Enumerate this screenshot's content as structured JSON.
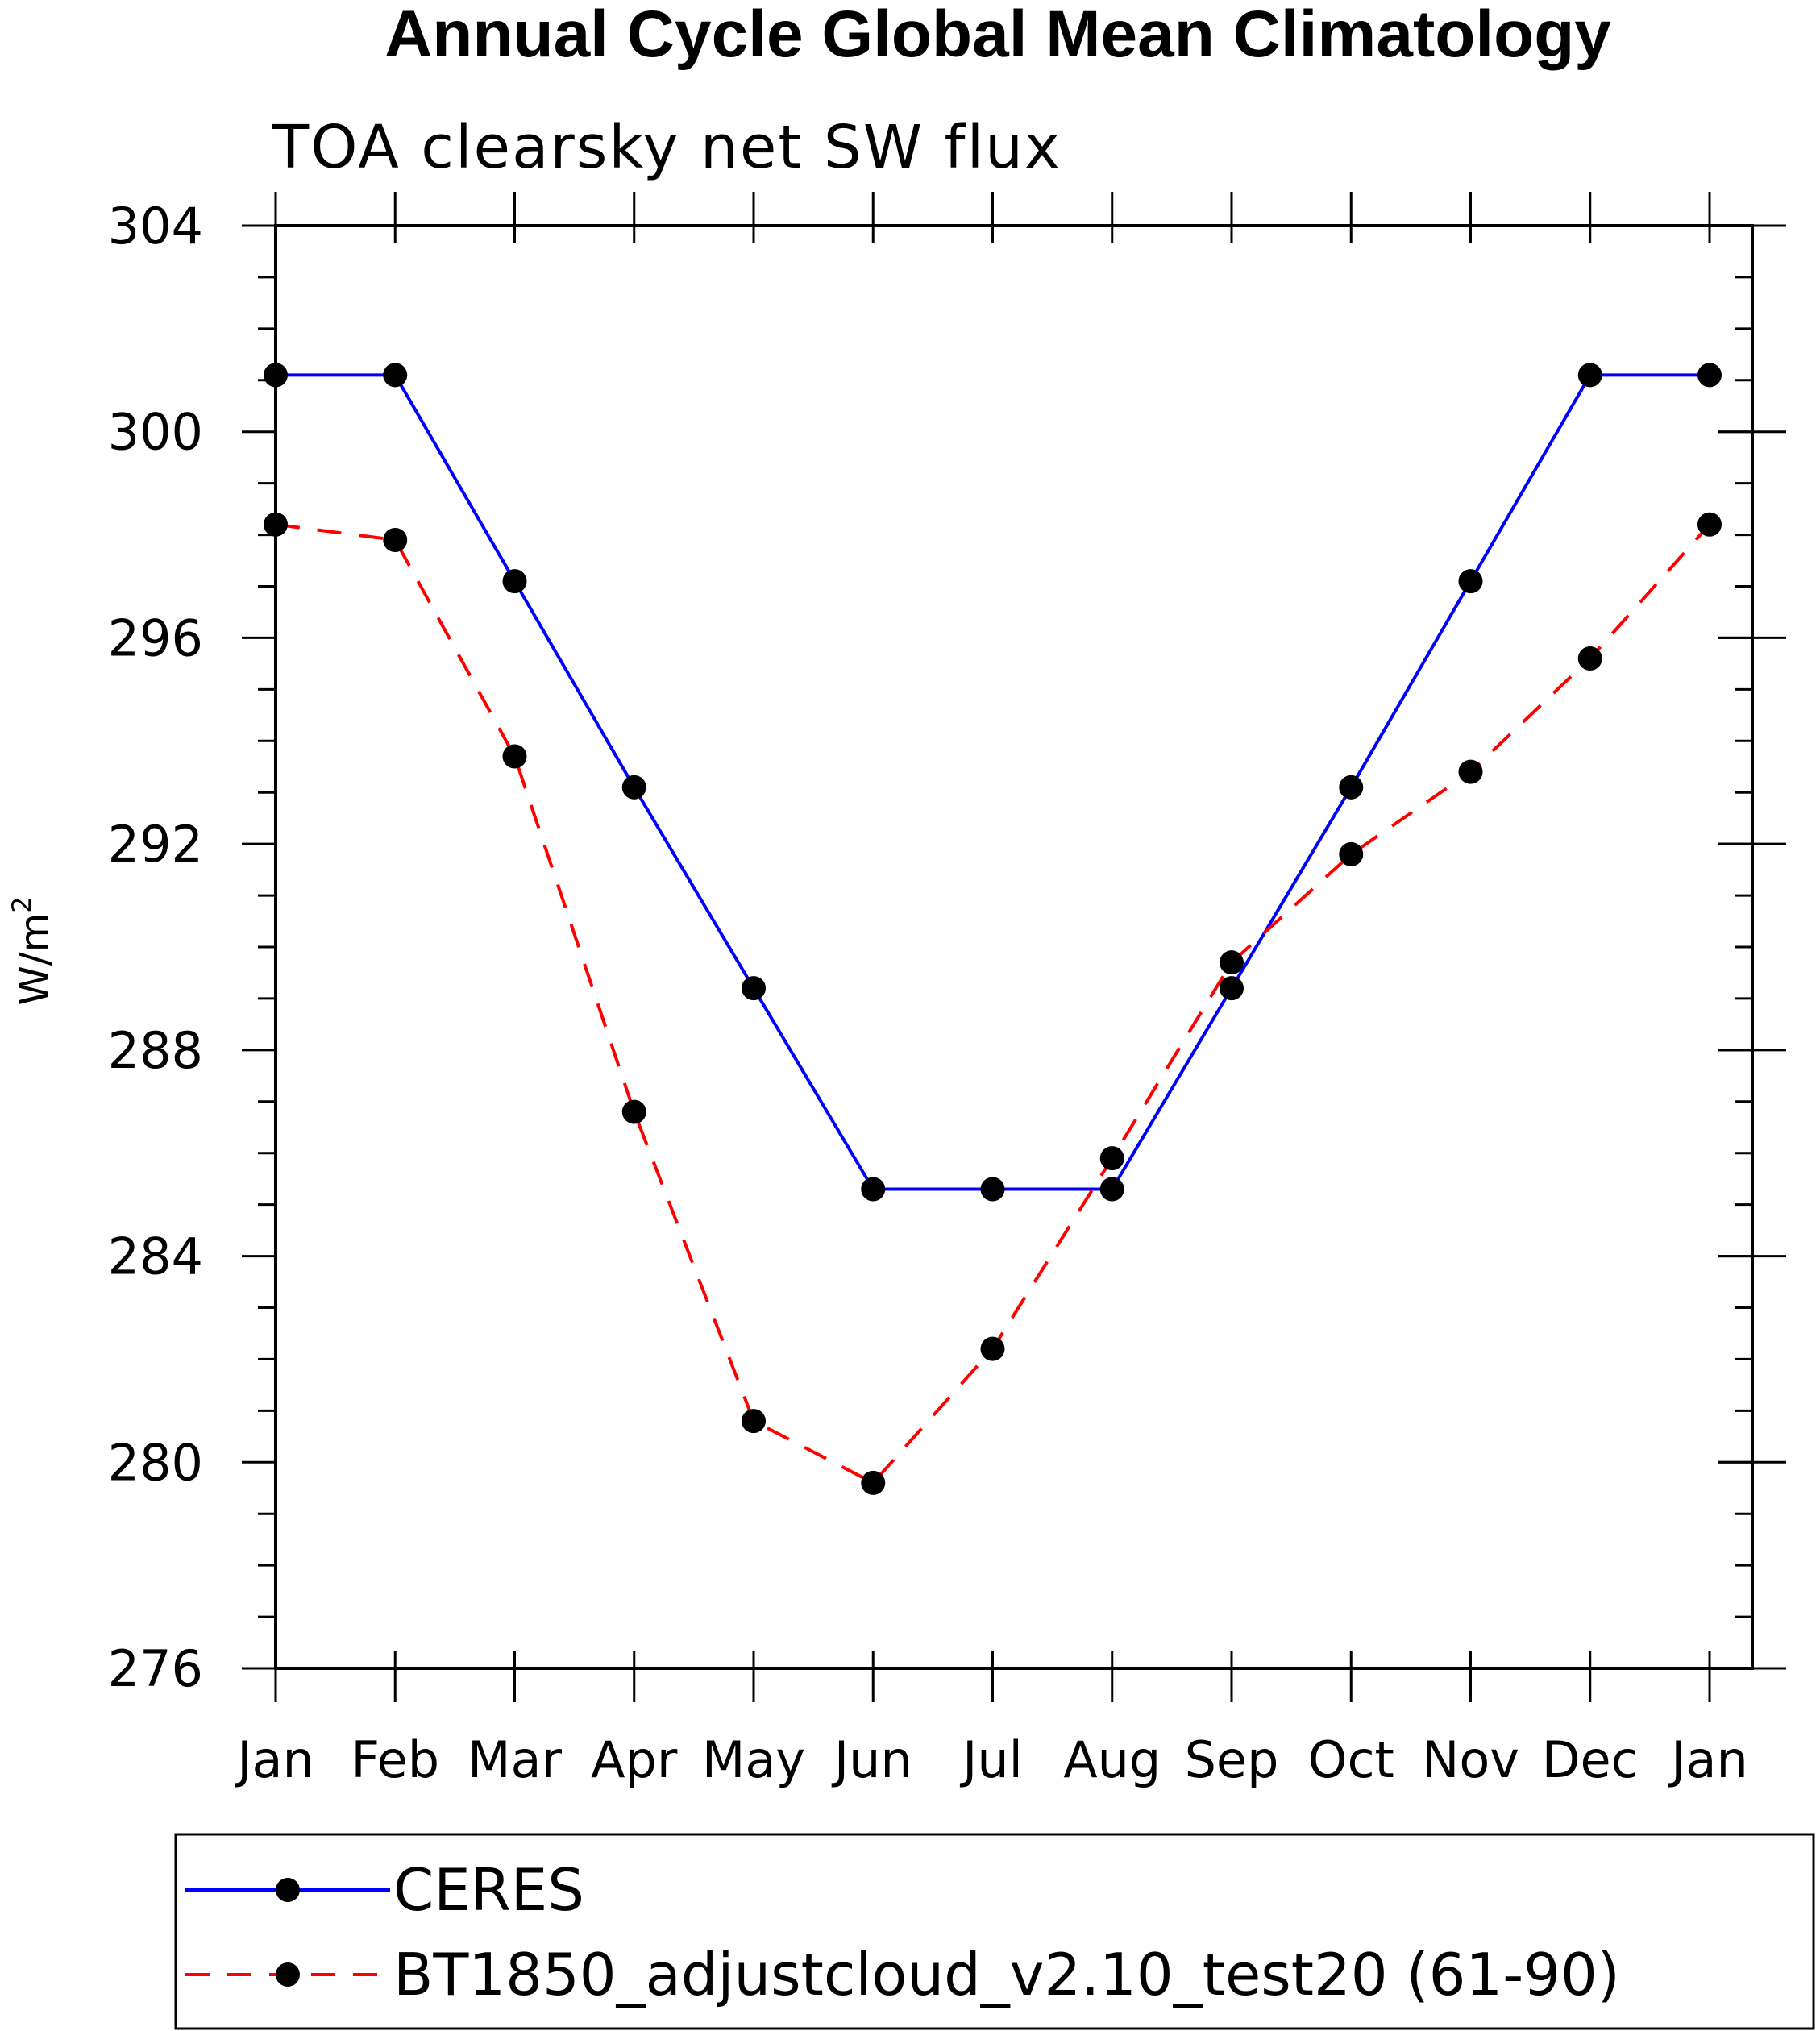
{
  "chart_data": {
    "type": "line",
    "title": "Annual Cycle Global Mean Climatology",
    "subtitle": "TOA clearsky net SW flux",
    "ylabel": "W/m",
    "ylabel_superscript": "2",
    "xlabel": "",
    "categories": [
      "Jan",
      "Feb",
      "Mar",
      "Apr",
      "May",
      "Jun",
      "Jul",
      "Aug",
      "Sep",
      "Oct",
      "Nov",
      "Dec",
      "Jan"
    ],
    "ylim": [
      276,
      304
    ],
    "yticks": [
      "276",
      "280",
      "284",
      "288",
      "292",
      "296",
      "300",
      "304"
    ],
    "series": [
      {
        "name": "CERES",
        "color": "#0000ff",
        "dash": "solid",
        "values": [
          301.1,
          301.1,
          297.1,
          293.1,
          289.2,
          285.3,
          285.3,
          285.3,
          289.2,
          293.1,
          297.1,
          301.1,
          301.1
        ]
      },
      {
        "name": "BT1850_adjustcloud_v2.10_test20 (61-90)",
        "color": "#ff0000",
        "dash": "dashed",
        "values": [
          298.2,
          297.9,
          293.7,
          286.8,
          280.8,
          279.6,
          282.2,
          285.9,
          289.7,
          291.8,
          293.4,
          295.6,
          298.2
        ]
      }
    ],
    "marker_color": "#000000",
    "legend_position": "bottom"
  }
}
